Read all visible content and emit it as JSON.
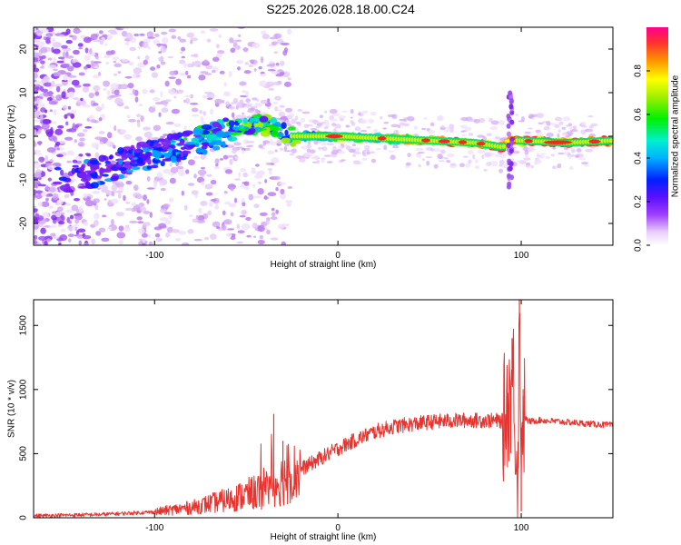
{
  "title": "S225.2026.028.18.00.C24",
  "chart_data": [
    {
      "type": "heatmap",
      "xlabel": "Height of straight line (km)",
      "ylabel": "Frequency (Hz)",
      "xlim": [
        -166,
        150
      ],
      "ylim": [
        -25,
        25
      ],
      "xticks": [
        -100,
        0,
        100
      ],
      "yticks": [
        -20,
        -10,
        0,
        10,
        20
      ],
      "colorbar": {
        "label": "Normalized spectral amplitude",
        "range": [
          0,
          1
        ],
        "ticks": [
          "0.0",
          "0.2",
          "0.4",
          "0.6",
          "0.8"
        ]
      },
      "ridge": [
        {
          "x": -150,
          "y": -10
        },
        {
          "x": -130,
          "y": -8
        },
        {
          "x": -110,
          "y": -5
        },
        {
          "x": -90,
          "y": -3
        },
        {
          "x": -75,
          "y": -1
        },
        {
          "x": -60,
          "y": 1
        },
        {
          "x": -45,
          "y": 3
        },
        {
          "x": -35,
          "y": 2
        },
        {
          "x": -25,
          "y": 0
        },
        {
          "x": 0,
          "y": 0
        },
        {
          "x": 25,
          "y": -0.5
        },
        {
          "x": 50,
          "y": -1
        },
        {
          "x": 75,
          "y": -1.5
        },
        {
          "x": 90,
          "y": -2.5
        },
        {
          "x": 95,
          "y": -1
        },
        {
          "x": 100,
          "y": -1
        },
        {
          "x": 125,
          "y": -1.5
        },
        {
          "x": 150,
          "y": -1
        }
      ]
    },
    {
      "type": "line",
      "xlabel": "Height of straight line (km)",
      "ylabel": "SNR (10 * v/v)",
      "xlim": [
        -166,
        150
      ],
      "ylim": [
        0,
        1700
      ],
      "xticks": [
        -100,
        0,
        100
      ],
      "yticks": [
        0,
        500,
        1000,
        1500
      ],
      "color": "#e8332f",
      "envelope_x": [
        -166,
        -130,
        -100,
        -80,
        -60,
        -40,
        -30,
        -20,
        -10,
        0,
        10,
        20,
        30,
        40,
        50,
        60,
        70,
        80,
        90,
        93,
        96,
        98,
        99,
        100,
        101,
        104,
        110,
        120,
        130,
        140,
        150
      ],
      "envelope_y": [
        15,
        25,
        45,
        80,
        140,
        220,
        300,
        380,
        460,
        540,
        610,
        670,
        710,
        730,
        745,
        755,
        760,
        760,
        755,
        900,
        1100,
        200,
        1500,
        700,
        800,
        750,
        760,
        750,
        740,
        730,
        720
      ],
      "spikes": [
        {
          "x": -35,
          "y": 810
        },
        {
          "x": -30,
          "y": 600
        },
        {
          "x": 95,
          "y": 1400
        },
        {
          "x": 96,
          "y": 1100
        },
        {
          "x": 98,
          "y": 200
        },
        {
          "x": 99,
          "y": 1700
        },
        {
          "x": 100,
          "y": 50
        },
        {
          "x": 101,
          "y": 950
        }
      ]
    }
  ]
}
